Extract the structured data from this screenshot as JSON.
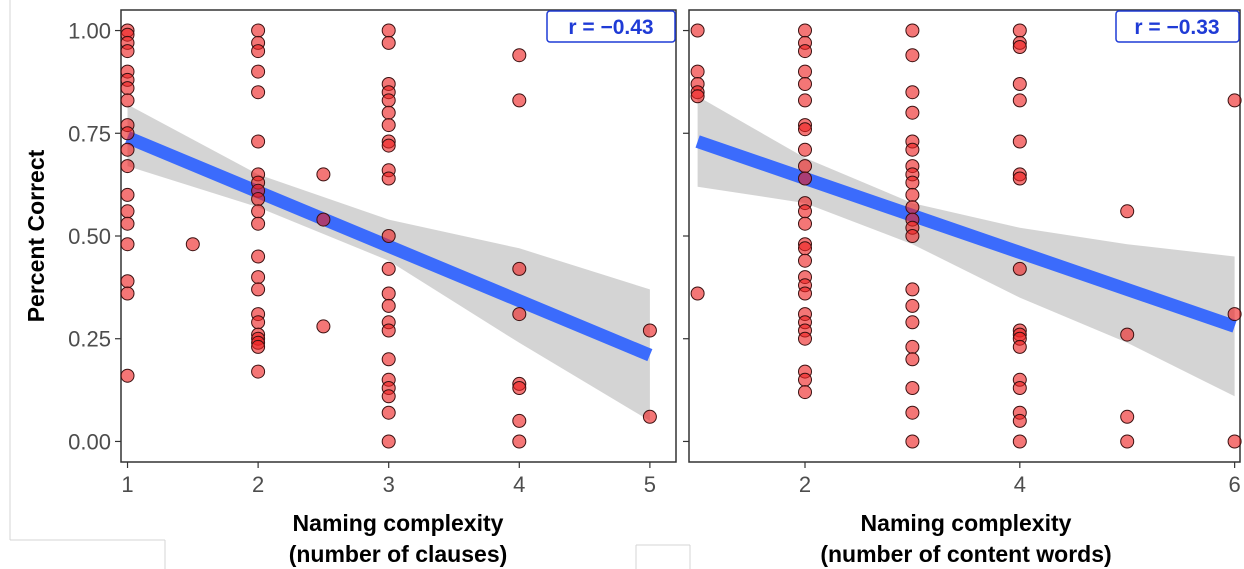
{
  "chart_data": [
    {
      "type": "scatter",
      "xlabel_line1": "Naming complexity",
      "xlabel_line2": "(number of clauses)",
      "ylabel": "Percent Correct",
      "xticks": [
        "1",
        "2",
        "3",
        "4",
        "5"
      ],
      "yticks": [
        "0.00",
        "0.25",
        "0.50",
        "0.75",
        "1.00"
      ],
      "xlim": [
        0.95,
        5.2
      ],
      "ylim": [
        -0.05,
        1.05
      ],
      "annotation": "r =  −0.43",
      "grid": false,
      "colors": {
        "points": "#ee2222",
        "fit_line": "#3366ff",
        "confidence_band": "#cccccc",
        "annotation": "#1f3bd6"
      },
      "fit": {
        "x_start": 1,
        "y_start": 0.74,
        "x_end": 5,
        "y_end": 0.21
      },
      "confidence_band": {
        "x": [
          1,
          2,
          3,
          4,
          5
        ],
        "upper": [
          0.82,
          0.65,
          0.54,
          0.47,
          0.37
        ],
        "lower": [
          0.67,
          0.57,
          0.44,
          0.24,
          0.05
        ]
      },
      "points": [
        {
          "x": 1,
          "y": 1.0
        },
        {
          "x": 1,
          "y": 0.99
        },
        {
          "x": 1,
          "y": 0.97
        },
        {
          "x": 1,
          "y": 0.95
        },
        {
          "x": 1,
          "y": 0.9
        },
        {
          "x": 1,
          "y": 0.88
        },
        {
          "x": 1,
          "y": 0.86
        },
        {
          "x": 1,
          "y": 0.83
        },
        {
          "x": 1,
          "y": 0.77
        },
        {
          "x": 1,
          "y": 0.75
        },
        {
          "x": 1,
          "y": 0.71
        },
        {
          "x": 1,
          "y": 0.67
        },
        {
          "x": 1,
          "y": 0.6
        },
        {
          "x": 1,
          "y": 0.56
        },
        {
          "x": 1,
          "y": 0.53
        },
        {
          "x": 1,
          "y": 0.48
        },
        {
          "x": 1,
          "y": 0.39
        },
        {
          "x": 1,
          "y": 0.36
        },
        {
          "x": 1,
          "y": 0.16
        },
        {
          "x": 1.5,
          "y": 0.48
        },
        {
          "x": 2,
          "y": 1.0
        },
        {
          "x": 2,
          "y": 0.97
        },
        {
          "x": 2,
          "y": 0.95
        },
        {
          "x": 2,
          "y": 0.9
        },
        {
          "x": 2,
          "y": 0.85
        },
        {
          "x": 2,
          "y": 0.73
        },
        {
          "x": 2,
          "y": 0.65
        },
        {
          "x": 2,
          "y": 0.63
        },
        {
          "x": 2,
          "y": 0.61
        },
        {
          "x": 2,
          "y": 0.59
        },
        {
          "x": 2,
          "y": 0.56
        },
        {
          "x": 2,
          "y": 0.53
        },
        {
          "x": 2,
          "y": 0.45
        },
        {
          "x": 2,
          "y": 0.4
        },
        {
          "x": 2,
          "y": 0.37
        },
        {
          "x": 2,
          "y": 0.31
        },
        {
          "x": 2,
          "y": 0.29
        },
        {
          "x": 2,
          "y": 0.26
        },
        {
          "x": 2,
          "y": 0.25
        },
        {
          "x": 2,
          "y": 0.24
        },
        {
          "x": 2,
          "y": 0.23
        },
        {
          "x": 2,
          "y": 0.17
        },
        {
          "x": 2.5,
          "y": 0.65
        },
        {
          "x": 2.5,
          "y": 0.54
        },
        {
          "x": 2.5,
          "y": 0.28
        },
        {
          "x": 3,
          "y": 1.0
        },
        {
          "x": 3,
          "y": 0.97
        },
        {
          "x": 3,
          "y": 0.87
        },
        {
          "x": 3,
          "y": 0.85
        },
        {
          "x": 3,
          "y": 0.83
        },
        {
          "x": 3,
          "y": 0.8
        },
        {
          "x": 3,
          "y": 0.77
        },
        {
          "x": 3,
          "y": 0.73
        },
        {
          "x": 3,
          "y": 0.72
        },
        {
          "x": 3,
          "y": 0.66
        },
        {
          "x": 3,
          "y": 0.64
        },
        {
          "x": 3,
          "y": 0.5
        },
        {
          "x": 3,
          "y": 0.42
        },
        {
          "x": 3,
          "y": 0.36
        },
        {
          "x": 3,
          "y": 0.33
        },
        {
          "x": 3,
          "y": 0.29
        },
        {
          "x": 3,
          "y": 0.27
        },
        {
          "x": 3,
          "y": 0.2
        },
        {
          "x": 3,
          "y": 0.15
        },
        {
          "x": 3,
          "y": 0.13
        },
        {
          "x": 3,
          "y": 0.11
        },
        {
          "x": 3,
          "y": 0.07
        },
        {
          "x": 3,
          "y": 0.0
        },
        {
          "x": 4,
          "y": 0.94
        },
        {
          "x": 4,
          "y": 0.83
        },
        {
          "x": 4,
          "y": 0.42
        },
        {
          "x": 4,
          "y": 0.31
        },
        {
          "x": 4,
          "y": 0.14
        },
        {
          "x": 4,
          "y": 0.13
        },
        {
          "x": 4,
          "y": 0.05
        },
        {
          "x": 4,
          "y": 0.0
        },
        {
          "x": 5,
          "y": 0.27
        },
        {
          "x": 5,
          "y": 0.06
        }
      ]
    },
    {
      "type": "scatter",
      "xlabel_line1": "Naming complexity",
      "xlabel_line2": "(number of content words)",
      "ylabel": "",
      "xticks": [
        "2",
        "4",
        "6"
      ],
      "yticks": [],
      "xlim": [
        0.92,
        6.05
      ],
      "ylim": [
        -0.05,
        1.05
      ],
      "annotation": "r =  −0.33",
      "grid": false,
      "colors": {
        "points": "#ee2222",
        "fit_line": "#3366ff",
        "confidence_band": "#cccccc",
        "annotation": "#1f3bd6"
      },
      "fit": {
        "x_start": 1,
        "y_start": 0.73,
        "x_end": 6,
        "y_end": 0.28
      },
      "confidence_band": {
        "x": [
          1,
          2,
          3,
          4,
          5,
          6
        ],
        "upper": [
          0.84,
          0.69,
          0.58,
          0.52,
          0.48,
          0.45
        ],
        "lower": [
          0.62,
          0.58,
          0.48,
          0.35,
          0.24,
          0.11
        ]
      },
      "points": [
        {
          "x": 1,
          "y": 1.0
        },
        {
          "x": 1,
          "y": 0.9
        },
        {
          "x": 1,
          "y": 0.87
        },
        {
          "x": 1,
          "y": 0.85
        },
        {
          "x": 1,
          "y": 0.84
        },
        {
          "x": 1,
          "y": 0.36
        },
        {
          "x": 2,
          "y": 1.0
        },
        {
          "x": 2,
          "y": 0.97
        },
        {
          "x": 2,
          "y": 0.95
        },
        {
          "x": 2,
          "y": 0.9
        },
        {
          "x": 2,
          "y": 0.87
        },
        {
          "x": 2,
          "y": 0.83
        },
        {
          "x": 2,
          "y": 0.77
        },
        {
          "x": 2,
          "y": 0.76
        },
        {
          "x": 2,
          "y": 0.71
        },
        {
          "x": 2,
          "y": 0.67
        },
        {
          "x": 2,
          "y": 0.64
        },
        {
          "x": 2,
          "y": 0.58
        },
        {
          "x": 2,
          "y": 0.56
        },
        {
          "x": 2,
          "y": 0.53
        },
        {
          "x": 2,
          "y": 0.48
        },
        {
          "x": 2,
          "y": 0.47
        },
        {
          "x": 2,
          "y": 0.44
        },
        {
          "x": 2,
          "y": 0.4
        },
        {
          "x": 2,
          "y": 0.38
        },
        {
          "x": 2,
          "y": 0.36
        },
        {
          "x": 2,
          "y": 0.31
        },
        {
          "x": 2,
          "y": 0.29
        },
        {
          "x": 2,
          "y": 0.27
        },
        {
          "x": 2,
          "y": 0.25
        },
        {
          "x": 2,
          "y": 0.17
        },
        {
          "x": 2,
          "y": 0.15
        },
        {
          "x": 2,
          "y": 0.12
        },
        {
          "x": 3,
          "y": 1.0
        },
        {
          "x": 3,
          "y": 0.94
        },
        {
          "x": 3,
          "y": 0.85
        },
        {
          "x": 3,
          "y": 0.8
        },
        {
          "x": 3,
          "y": 0.73
        },
        {
          "x": 3,
          "y": 0.71
        },
        {
          "x": 3,
          "y": 0.67
        },
        {
          "x": 3,
          "y": 0.65
        },
        {
          "x": 3,
          "y": 0.63
        },
        {
          "x": 3,
          "y": 0.6
        },
        {
          "x": 3,
          "y": 0.57
        },
        {
          "x": 3,
          "y": 0.54
        },
        {
          "x": 3,
          "y": 0.52
        },
        {
          "x": 3,
          "y": 0.5
        },
        {
          "x": 3,
          "y": 0.37
        },
        {
          "x": 3,
          "y": 0.33
        },
        {
          "x": 3,
          "y": 0.29
        },
        {
          "x": 3,
          "y": 0.23
        },
        {
          "x": 3,
          "y": 0.2
        },
        {
          "x": 3,
          "y": 0.13
        },
        {
          "x": 3,
          "y": 0.07
        },
        {
          "x": 3,
          "y": 0.0
        },
        {
          "x": 4,
          "y": 1.0
        },
        {
          "x": 4,
          "y": 0.97
        },
        {
          "x": 4,
          "y": 0.96
        },
        {
          "x": 4,
          "y": 0.87
        },
        {
          "x": 4,
          "y": 0.83
        },
        {
          "x": 4,
          "y": 0.73
        },
        {
          "x": 4,
          "y": 0.65
        },
        {
          "x": 4,
          "y": 0.64
        },
        {
          "x": 4,
          "y": 0.42
        },
        {
          "x": 4,
          "y": 0.27
        },
        {
          "x": 4,
          "y": 0.26
        },
        {
          "x": 4,
          "y": 0.25
        },
        {
          "x": 4,
          "y": 0.23
        },
        {
          "x": 4,
          "y": 0.15
        },
        {
          "x": 4,
          "y": 0.13
        },
        {
          "x": 4,
          "y": 0.07
        },
        {
          "x": 4,
          "y": 0.05
        },
        {
          "x": 4,
          "y": 0.0
        },
        {
          "x": 5,
          "y": 0.56
        },
        {
          "x": 5,
          "y": 0.26
        },
        {
          "x": 5,
          "y": 0.06
        },
        {
          "x": 5,
          "y": 0.0
        },
        {
          "x": 6,
          "y": 0.83
        },
        {
          "x": 6,
          "y": 0.31
        },
        {
          "x": 6,
          "y": 0.0
        }
      ]
    }
  ]
}
